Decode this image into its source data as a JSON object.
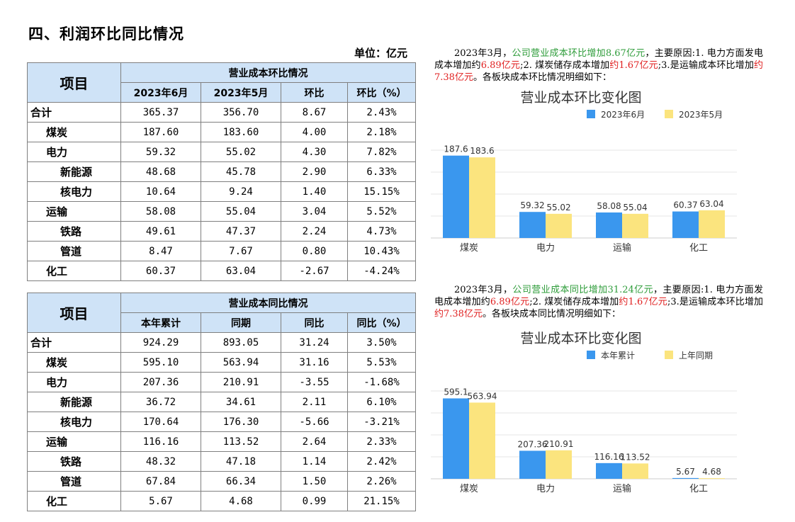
{
  "page": {
    "title": "四、利润环比同比情况",
    "unit": "单位：亿元"
  },
  "table_mom": {
    "item_header": "项目",
    "group_header": "营业成本环比情况",
    "columns": [
      "2023年6月",
      "2023年5月",
      "环比",
      "环比（%）"
    ],
    "rows": [
      {
        "name": "合计",
        "level": 0,
        "values": [
          "365.37",
          "356.70",
          "8.67",
          "2.43%"
        ]
      },
      {
        "name": "煤炭",
        "level": 1,
        "values": [
          "187.60",
          "183.60",
          "4.00",
          "2.18%"
        ]
      },
      {
        "name": "电力",
        "level": 1,
        "values": [
          "59.32",
          "55.02",
          "4.30",
          "7.82%"
        ]
      },
      {
        "name": "新能源",
        "level": 2,
        "values": [
          "48.68",
          "45.78",
          "2.90",
          "6.33%"
        ]
      },
      {
        "name": "核电力",
        "level": 2,
        "values": [
          "10.64",
          "9.24",
          "1.40",
          "15.15%"
        ]
      },
      {
        "name": "运输",
        "level": 1,
        "values": [
          "58.08",
          "55.04",
          "3.04",
          "5.52%"
        ]
      },
      {
        "name": "铁路",
        "level": 2,
        "values": [
          "49.61",
          "47.37",
          "2.24",
          "4.73%"
        ]
      },
      {
        "name": "管道",
        "level": 2,
        "values": [
          "8.47",
          "7.67",
          "0.80",
          "10.43%"
        ]
      },
      {
        "name": "化工",
        "level": 1,
        "values": [
          "60.37",
          "63.04",
          "-2.67",
          "-4.24%"
        ]
      }
    ]
  },
  "table_yoy": {
    "item_header": "项目",
    "group_header": "营业成本同比情况",
    "columns": [
      "本年累计",
      "同期",
      "同比",
      "同比（%）"
    ],
    "rows": [
      {
        "name": "合计",
        "level": 0,
        "values": [
          "924.29",
          "893.05",
          "31.24",
          "3.50%"
        ]
      },
      {
        "name": "煤炭",
        "level": 1,
        "values": [
          "595.10",
          "563.94",
          "31.16",
          "5.53%"
        ]
      },
      {
        "name": "电力",
        "level": 1,
        "values": [
          "207.36",
          "210.91",
          "-3.55",
          "-1.68%"
        ]
      },
      {
        "name": "新能源",
        "level": 2,
        "values": [
          "36.72",
          "34.61",
          "2.11",
          "6.10%"
        ]
      },
      {
        "name": "核电力",
        "level": 2,
        "values": [
          "170.64",
          "176.30",
          "-5.66",
          "-3.21%"
        ]
      },
      {
        "name": "运输",
        "level": 1,
        "values": [
          "116.16",
          "113.52",
          "2.64",
          "2.33%"
        ]
      },
      {
        "name": "铁路",
        "level": 2,
        "values": [
          "48.32",
          "47.18",
          "1.14",
          "2.42%"
        ]
      },
      {
        "name": "管道",
        "level": 2,
        "values": [
          "67.84",
          "66.34",
          "1.50",
          "2.26%"
        ]
      },
      {
        "name": "化工",
        "level": 1,
        "values": [
          "5.67",
          "4.68",
          "0.99",
          "21.15%"
        ]
      }
    ]
  },
  "summary_mom": {
    "p1": "2023年3月，",
    "p2": "公司营业成本环比增加8.67亿元",
    "p3": "，主要原因:1. 电力方面发电成本增加约",
    "p4": "6.89亿元",
    "p5": ";2. 煤炭储存成本增加",
    "p6": "约1.67亿元",
    "p7": ";3.是运输成本环比增加",
    "p8": "约7.38亿元",
    "p9": "。各板块成本环比情况明细如下："
  },
  "summary_yoy": {
    "p1": "2023年3月，",
    "p2": "公司营业成本同比增加31.24亿元",
    "p3": "，主要原因:1. 电力方面发电成本增加约",
    "p4": "6.89亿元",
    "p5": ";2. 煤炭储存成本增加",
    "p6": "约1.67亿元",
    "p7": ";3.是运输成本环比增加",
    "p8": "约7.38亿元",
    "p9": "。各板块成本同比情况明细如下："
  },
  "colors": {
    "series1": "#3a97ee",
    "series2": "#fbe47e",
    "grid": "#e6e6e6",
    "axis": "#cccccc"
  },
  "chart_data": [
    {
      "type": "bar",
      "title": "营业成本环比变化图",
      "categories": [
        "煤炭",
        "电力",
        "运输",
        "化工"
      ],
      "series": [
        {
          "name": "2023年6月",
          "values": [
            187.6,
            59.32,
            58.08,
            60.37
          ],
          "labels": [
            "187.6",
            "59.32",
            "58.08",
            "60.37"
          ]
        },
        {
          "name": "2023年5月",
          "values": [
            183.6,
            55.02,
            55.04,
            63.04
          ],
          "labels": [
            "183.6",
            "55.02",
            "55.04",
            "63.04"
          ]
        }
      ],
      "ylim": [
        0,
        200
      ],
      "grid": true,
      "legend": "top-center"
    },
    {
      "type": "bar",
      "title": "营业成本环比变化图",
      "categories": [
        "煤炭",
        "电力",
        "运输",
        "化工"
      ],
      "series": [
        {
          "name": "本年累计",
          "values": [
            595.1,
            207.36,
            116.16,
            5.67
          ],
          "labels": [
            "595.1",
            "207.36",
            "116.16",
            "5.67"
          ]
        },
        {
          "name": "上年同期",
          "values": [
            563.94,
            210.91,
            113.52,
            4.68
          ],
          "labels": [
            "563.94",
            "210.91",
            "113.52",
            "4.68"
          ]
        }
      ],
      "ylim": [
        0,
        650
      ],
      "grid": true,
      "legend": "top-center"
    }
  ]
}
